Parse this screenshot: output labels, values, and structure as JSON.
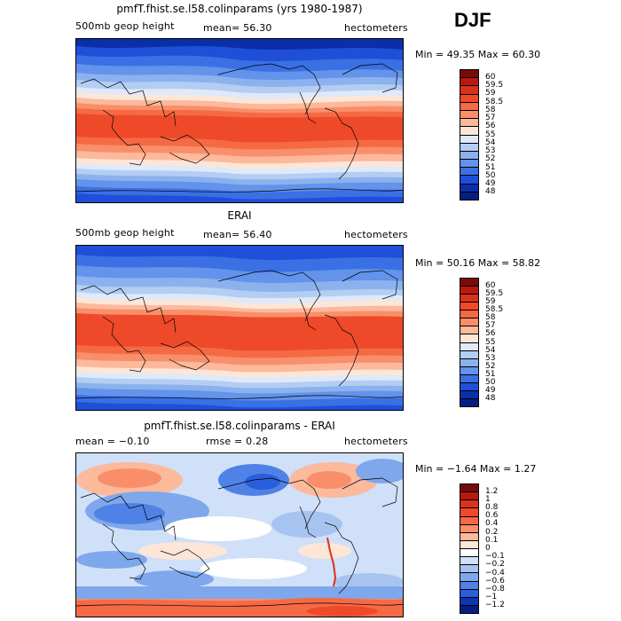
{
  "season": "DJF",
  "panels": [
    {
      "title": "pmfT.fhist.se.l58.colinparams (yrs 1980-1987)",
      "left_label": "500mb geop height",
      "center_label": "mean=  56.30",
      "right_label": "hectometers",
      "minmax": "Min =  49.35 Max =  60.30",
      "levels": [
        "60",
        "59.5",
        "59",
        "58.5",
        "58",
        "57",
        "56",
        "55",
        "54",
        "53",
        "52",
        "51",
        "50",
        "49",
        "48"
      ],
      "colors": [
        "#7a0a0a",
        "#b8190f",
        "#d9321c",
        "#ee4a2a",
        "#f56a45",
        "#f98f6a",
        "#fcb99c",
        "#fde6d8",
        "#dfe9f9",
        "#b4cdf3",
        "#8cb2ee",
        "#6393ea",
        "#3a70e4",
        "#1f4fd8",
        "#0a2fa8",
        "#061d82"
      ]
    },
    {
      "title": "ERAI",
      "left_label": "500mb geop height",
      "center_label": "mean=  56.40",
      "right_label": "hectometers",
      "minmax": "Min =  50.16 Max =  58.82",
      "levels": [
        "60",
        "59.5",
        "59",
        "58.5",
        "58",
        "57",
        "56",
        "55",
        "54",
        "53",
        "52",
        "51",
        "50",
        "49",
        "48"
      ],
      "colors": [
        "#7a0a0a",
        "#b8190f",
        "#d9321c",
        "#ee4a2a",
        "#f56a45",
        "#f98f6a",
        "#fcb99c",
        "#fde6d8",
        "#dfe9f9",
        "#b4cdf3",
        "#8cb2ee",
        "#6393ea",
        "#3a70e4",
        "#1f4fd8",
        "#0a2fa8",
        "#061d82"
      ]
    },
    {
      "title": "pmfT.fhist.se.l58.colinparams - ERAI",
      "left_label": "mean =  −0.10",
      "center_label": "rmse =   0.28",
      "right_label": "hectometers",
      "minmax": "Min =  −1.64 Max =   1.27",
      "levels": [
        "1.2",
        "1",
        "0.8",
        "0.6",
        "0.4",
        "0.2",
        "0.1",
        "0",
        "−0.1",
        "−0.2",
        "−0.4",
        "−0.6",
        "−0.8",
        "−1",
        "−1.2"
      ],
      "colors": [
        "#7a0a0a",
        "#b8190f",
        "#d9321c",
        "#ee4a2a",
        "#f56a45",
        "#f98f6a",
        "#fcb99c",
        "#fde6d8",
        "#ffffff",
        "#cfe0f8",
        "#a7c4f1",
        "#7ea7ec",
        "#4f82e6",
        "#2a5fdc",
        "#0c36b0",
        "#061d82"
      ]
    }
  ]
}
